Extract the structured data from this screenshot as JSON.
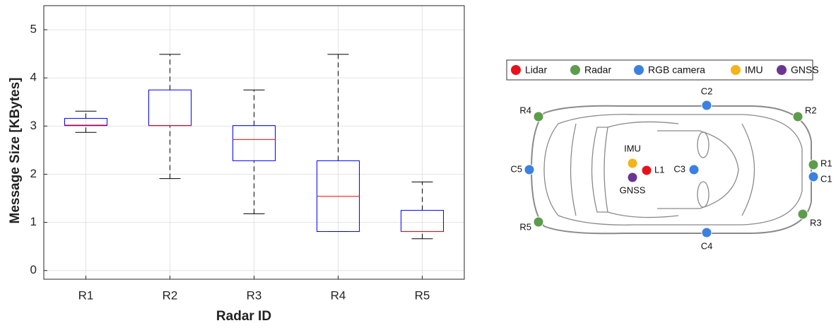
{
  "chart_data": {
    "type": "box",
    "xlabel": "Radar ID",
    "ylabel": "Message Size [KBytes]",
    "categories": [
      "R1",
      "R2",
      "R3",
      "R4",
      "R5"
    ],
    "min": [
      2.87,
      1.91,
      1.18,
      0.81,
      0.66
    ],
    "q1": [
      3.01,
      3.01,
      2.28,
      0.81,
      0.81
    ],
    "median": [
      3.02,
      3.01,
      2.72,
      1.54,
      0.81
    ],
    "q3": [
      3.16,
      3.75,
      3.01,
      2.28,
      1.25
    ],
    "max": [
      3.31,
      4.49,
      3.75,
      4.49,
      1.84
    ],
    "ylim": [
      -0.18,
      5.5
    ],
    "yticks": [
      0,
      1,
      2,
      3,
      4,
      5
    ],
    "grid": true,
    "box_color": "#0000ff",
    "median_color": "#ff0000",
    "whisker_color": "#000000"
  },
  "diagram": {
    "legend": [
      {
        "name": "Lidar",
        "color": "#e8111b",
        "sensors": [
          "L1"
        ]
      },
      {
        "name": "Radar",
        "color": "#5d9c4c",
        "sensors": [
          "R1",
          "R2",
          "R3",
          "R4",
          "R5"
        ]
      },
      {
        "name": "RGB camera",
        "color": "#3c80e0",
        "sensors": [
          "C1",
          "C2",
          "C3",
          "C4",
          "C5"
        ]
      },
      {
        "name": "IMU",
        "color": "#f2b419",
        "sensors": [
          "IMU"
        ]
      },
      {
        "name": "GNSS",
        "color": "#6a3592",
        "sensors": [
          "GNSS"
        ]
      }
    ]
  }
}
